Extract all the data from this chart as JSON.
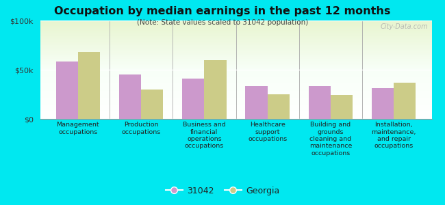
{
  "title": "Occupation by median earnings in the past 12 months",
  "subtitle": "(Note: State values scaled to 31042 population)",
  "background_color": "#00e8f0",
  "categories": [
    "Management\noccupations",
    "Production\noccupations",
    "Business and\nfinancial\noperations\noccupations",
    "Healthcare\nsupport\noccupations",
    "Building and\ngrounds\ncleaning and\nmaintenance\noccupations",
    "Installation,\nmaintenance,\nand repair\noccupations"
  ],
  "values_31042": [
    58000,
    45000,
    41000,
    33000,
    33000,
    31000
  ],
  "values_georgia": [
    68000,
    30000,
    60000,
    25000,
    24000,
    37000
  ],
  "color_31042": "#cc99cc",
  "color_georgia": "#cccc88",
  "ylim": [
    0,
    100000
  ],
  "yticks": [
    0,
    50000,
    100000
  ],
  "ytick_labels": [
    "$0",
    "$50k",
    "$100k"
  ],
  "legend_label_31042": "31042",
  "legend_label_georgia": "Georgia",
  "bar_width": 0.35,
  "watermark": "City-Data.com"
}
